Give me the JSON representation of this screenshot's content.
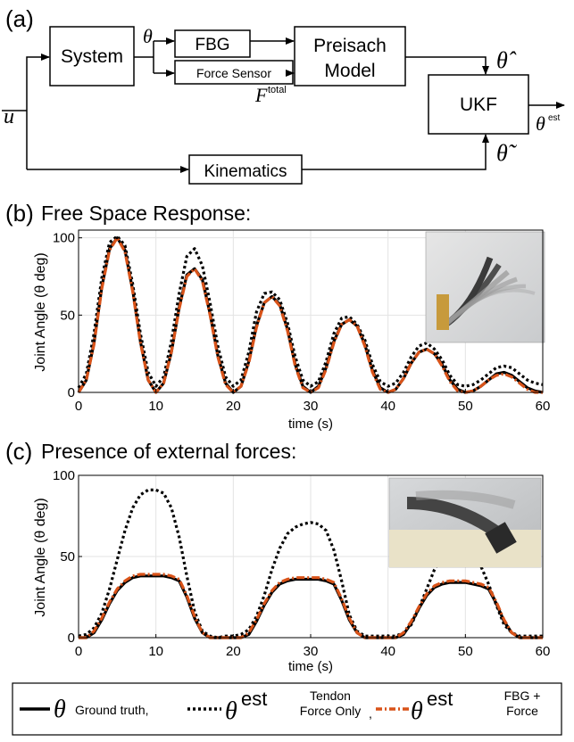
{
  "diagram": {
    "panel_label": "(a)",
    "blocks": {
      "system": "System",
      "fbg": "FBG",
      "force_sensor": "Force Sensor",
      "preisach": [
        "Preisach",
        "Model"
      ],
      "ukf": "UKF",
      "kinematics": "Kinematics"
    },
    "symbols": {
      "theta": "θ",
      "input": "u",
      "f_total_base": "F",
      "f_total_sup": "total",
      "theta_hat": "θ̂",
      "theta_tilde": "θ̃",
      "theta_est_base": "θ",
      "theta_est_sup": "est"
    }
  },
  "chart_data": [
    {
      "type": "line",
      "panel_label": "(b)",
      "title": "Free Space Response:",
      "xlabel": "time (s)",
      "ylabel": "Joint Angle (θ deg)",
      "xlim": [
        0,
        60
      ],
      "ylim": [
        0,
        105
      ],
      "xticks": [
        0,
        10,
        20,
        30,
        40,
        50,
        60
      ],
      "yticks": [
        0,
        50,
        100
      ],
      "grid": true,
      "photo": "robot-free-space-photo",
      "series": [
        {
          "key": "truth",
          "color": "#000000",
          "x": [
            0,
            1,
            2,
            3,
            4,
            5,
            6,
            7,
            8,
            9,
            10,
            11,
            12,
            13,
            14,
            15,
            16,
            17,
            18,
            19,
            20,
            21,
            22,
            23,
            24,
            25,
            26,
            27,
            28,
            29,
            30,
            31,
            32,
            33,
            34,
            35,
            36,
            37,
            38,
            39,
            40,
            41,
            42,
            43,
            44,
            45,
            46,
            47,
            48,
            49,
            50,
            51,
            52,
            53,
            54,
            55,
            56,
            57,
            58,
            59,
            60
          ],
          "y": [
            0,
            8,
            32,
            68,
            93,
            100,
            92,
            66,
            33,
            8,
            0,
            6,
            26,
            55,
            76,
            80,
            73,
            51,
            24,
            6,
            0,
            4,
            20,
            43,
            58,
            62,
            57,
            41,
            18,
            4,
            0,
            4,
            16,
            33,
            44,
            47,
            43,
            31,
            14,
            3,
            0,
            2,
            9,
            19,
            26,
            28,
            25,
            18,
            8,
            2,
            0,
            1,
            4,
            8,
            12,
            13,
            11,
            7,
            3,
            1,
            0
          ]
        },
        {
          "key": "tendon",
          "color": "#000000",
          "x": [
            0,
            1,
            2,
            3,
            4,
            5,
            6,
            7,
            8,
            9,
            10,
            11,
            12,
            13,
            14,
            15,
            16,
            17,
            18,
            19,
            20,
            21,
            22,
            23,
            24,
            25,
            26,
            27,
            28,
            29,
            30,
            31,
            32,
            33,
            34,
            35,
            36,
            37,
            38,
            39,
            40,
            41,
            42,
            43,
            44,
            45,
            46,
            47,
            48,
            49,
            50,
            51,
            52,
            53,
            54,
            55,
            56,
            57,
            58,
            59,
            60
          ],
          "y": [
            3,
            12,
            38,
            74,
            97,
            101,
            95,
            70,
            38,
            13,
            4,
            10,
            33,
            64,
            88,
            93,
            82,
            58,
            30,
            10,
            4,
            8,
            26,
            52,
            64,
            65,
            60,
            45,
            23,
            8,
            4,
            7,
            20,
            38,
            48,
            49,
            44,
            34,
            18,
            7,
            4,
            6,
            13,
            23,
            30,
            32,
            28,
            21,
            11,
            5,
            4,
            5,
            8,
            12,
            16,
            17,
            16,
            12,
            8,
            6,
            5
          ]
        },
        {
          "key": "fbg",
          "color": "#d95319",
          "x": [
            0,
            1,
            2,
            3,
            4,
            5,
            6,
            7,
            8,
            9,
            10,
            11,
            12,
            13,
            14,
            15,
            16,
            17,
            18,
            19,
            20,
            21,
            22,
            23,
            24,
            25,
            26,
            27,
            28,
            29,
            30,
            31,
            32,
            33,
            34,
            35,
            36,
            37,
            38,
            39,
            40,
            41,
            42,
            43,
            44,
            45,
            46,
            47,
            48,
            49,
            50,
            51,
            52,
            53,
            54,
            55,
            56,
            57,
            58,
            59,
            60
          ],
          "y": [
            0,
            8,
            31,
            67,
            92,
            100,
            91,
            65,
            32,
            8,
            0,
            6,
            26,
            54,
            75,
            80,
            72,
            50,
            23,
            5,
            0,
            4,
            19,
            42,
            58,
            62,
            56,
            40,
            17,
            3,
            0,
            3,
            15,
            32,
            44,
            47,
            43,
            30,
            13,
            2,
            0,
            2,
            9,
            19,
            26,
            28,
            25,
            17,
            7,
            1,
            0,
            1,
            4,
            8,
            11,
            12,
            10,
            6,
            2,
            0,
            0
          ]
        }
      ]
    },
    {
      "type": "line",
      "panel_label": "(c)",
      "title": "Presence of external forces:",
      "xlabel": "time (s)",
      "ylabel": "Joint Angle (θ deg)",
      "xlim": [
        0,
        60
      ],
      "ylim": [
        0,
        100
      ],
      "xticks": [
        0,
        10,
        20,
        30,
        40,
        50,
        60
      ],
      "yticks": [
        0,
        50,
        100
      ],
      "grid": true,
      "photo": "robot-external-force-photo",
      "series": [
        {
          "key": "truth",
          "color": "#000000",
          "x": [
            0,
            1,
            2,
            3,
            4,
            5,
            6,
            7,
            8,
            9,
            10,
            11,
            12,
            13,
            14,
            15,
            16,
            17,
            18,
            19,
            20,
            21,
            22,
            23,
            24,
            25,
            26,
            27,
            28,
            29,
            30,
            31,
            32,
            33,
            34,
            35,
            36,
            37,
            38,
            39,
            40,
            41,
            42,
            43,
            44,
            45,
            46,
            47,
            48,
            49,
            50,
            51,
            52,
            53,
            54,
            55,
            56,
            57,
            58,
            59,
            60
          ],
          "y": [
            0,
            0,
            3,
            11,
            21,
            29,
            34,
            37,
            38,
            38,
            38,
            38,
            37,
            35,
            25,
            12,
            3,
            0,
            0,
            0,
            0,
            0,
            2,
            10,
            20,
            28,
            33,
            35,
            36,
            36,
            36,
            36,
            35,
            33,
            23,
            11,
            3,
            0,
            0,
            0,
            0,
            0,
            2,
            9,
            18,
            26,
            31,
            33,
            34,
            34,
            34,
            33,
            32,
            30,
            21,
            10,
            3,
            0,
            0,
            0,
            0
          ]
        },
        {
          "key": "tendon",
          "color": "#000000",
          "x": [
            0,
            1,
            2,
            3,
            4,
            5,
            6,
            7,
            8,
            9,
            10,
            11,
            12,
            13,
            14,
            15,
            16,
            17,
            18,
            19,
            20,
            21,
            22,
            23,
            24,
            25,
            26,
            27,
            28,
            29,
            30,
            31,
            32,
            33,
            34,
            35,
            36,
            37,
            38,
            39,
            40,
            41,
            42,
            43,
            44,
            45,
            46,
            47,
            48,
            49,
            50,
            51,
            52,
            53,
            54,
            55,
            56,
            57,
            58,
            59,
            60
          ],
          "y": [
            1,
            2,
            6,
            15,
            30,
            48,
            66,
            80,
            88,
            91,
            91,
            89,
            80,
            62,
            38,
            16,
            4,
            1,
            0,
            1,
            1,
            2,
            5,
            13,
            26,
            42,
            55,
            64,
            68,
            70,
            71,
            70,
            66,
            54,
            35,
            14,
            4,
            1,
            1,
            1,
            1,
            1,
            3,
            8,
            18,
            30,
            42,
            50,
            53,
            53,
            52,
            50,
            44,
            33,
            20,
            8,
            3,
            1,
            1,
            1,
            1
          ]
        },
        {
          "key": "fbg",
          "color": "#d95319",
          "x": [
            0,
            1,
            2,
            3,
            4,
            5,
            6,
            7,
            8,
            9,
            10,
            11,
            12,
            13,
            14,
            15,
            16,
            17,
            18,
            19,
            20,
            21,
            22,
            23,
            24,
            25,
            26,
            27,
            28,
            29,
            30,
            31,
            32,
            33,
            34,
            35,
            36,
            37,
            38,
            39,
            40,
            41,
            42,
            43,
            44,
            45,
            46,
            47,
            48,
            49,
            50,
            51,
            52,
            53,
            54,
            55,
            56,
            57,
            58,
            59,
            60
          ],
          "y": [
            0,
            0,
            4,
            12,
            22,
            30,
            35,
            38,
            39,
            39,
            39,
            39,
            38,
            36,
            26,
            13,
            3,
            0,
            0,
            0,
            0,
            0,
            3,
            11,
            21,
            29,
            34,
            36,
            37,
            37,
            37,
            37,
            36,
            34,
            24,
            12,
            3,
            0,
            0,
            0,
            0,
            0,
            3,
            10,
            19,
            27,
            32,
            34,
            35,
            35,
            35,
            34,
            33,
            31,
            22,
            11,
            3,
            0,
            0,
            0,
            0
          ]
        }
      ]
    }
  ],
  "legend": {
    "truth_symbol": "θ",
    "truth_label": "Ground truth,",
    "tendon_symbol": "θ",
    "tendon_sup": "est",
    "tendon_label": [
      "Tendon",
      "Force Only"
    ],
    "fbg_symbol": "θ",
    "fbg_sup": "est",
    "fbg_label": [
      "FBG +",
      "Force"
    ],
    "sep": ","
  }
}
